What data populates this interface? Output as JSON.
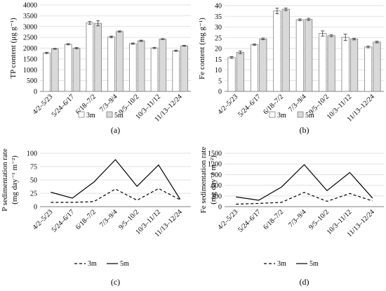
{
  "panel_labels": [
    "(a)",
    "(b)",
    "(c)",
    "(d)"
  ],
  "chart_data": [
    {
      "type": "bar",
      "panel": "(a)",
      "ylabel": "TP content (μg g⁻¹)",
      "ylim": [
        0,
        4000
      ],
      "yticks": [
        "0",
        "500",
        "1000",
        "1500",
        "2000",
        "2500",
        "3000",
        "3500",
        "4000"
      ],
      "categories": [
        "4/2–5/23",
        "5/24–6/17",
        "6/18–7/2",
        "7/3–9/4",
        "9/5–10/2",
        "10/3–11/12",
        "11/13–12/24"
      ],
      "series": [
        {
          "name": "3m",
          "values": [
            1780,
            2180,
            3170,
            2520,
            2210,
            2010,
            1880
          ],
          "errors": [
            30,
            30,
            70,
            40,
            30,
            30,
            30
          ],
          "color": "#ffffff"
        },
        {
          "name": "5m",
          "values": [
            1970,
            2000,
            3150,
            2770,
            2340,
            2420,
            2110
          ],
          "errors": [
            20,
            30,
            120,
            30,
            30,
            20,
            20
          ],
          "color": "#d9d9d9"
        }
      ],
      "legend": "bottom",
      "grid": true
    },
    {
      "type": "bar",
      "panel": "(b)",
      "ylabel": "Fe content (mg g⁻¹)",
      "ylim": [
        0,
        40
      ],
      "yticks": [
        "0",
        "5",
        "10",
        "15",
        "20",
        "25",
        "30",
        "35",
        "40"
      ],
      "categories": [
        "4/2–5/23",
        "5/24–6/17",
        "6/18–7/2",
        "7/3–9/4",
        "9/5–10/2",
        "10/3–11/12",
        "11/13–12/24"
      ],
      "series": [
        {
          "name": "3m",
          "values": [
            15.8,
            21.8,
            37.5,
            33.4,
            27.0,
            25.2,
            20.7
          ],
          "errors": [
            0.4,
            0.3,
            1.3,
            0.4,
            1.2,
            1.5,
            0.4
          ],
          "color": "#ffffff"
        },
        {
          "name": "5m",
          "values": [
            18.2,
            24.5,
            38.3,
            33.6,
            26.0,
            24.4,
            23.0
          ],
          "errors": [
            0.6,
            0.4,
            0.6,
            0.5,
            0.5,
            0.4,
            0.4
          ],
          "color": "#d9d9d9"
        }
      ],
      "legend": "bottom",
      "grid": true
    },
    {
      "type": "line",
      "panel": "(c)",
      "ylabel_lines": [
        "P sedimentation rate",
        "(mg day⁻¹ m⁻²)"
      ],
      "ylim": [
        0,
        100
      ],
      "yticks": [
        "0",
        "25",
        "50",
        "75",
        "100"
      ],
      "categories": [
        "4/2–5/23",
        "5/24–6/17",
        "6/18–7/2",
        "7/3–9/4",
        "9/5–10/2",
        "10/3–11/12",
        "11/13–12/24"
      ],
      "series": [
        {
          "name": "3m",
          "values": [
            8,
            8,
            9.5,
            33,
            12,
            34,
            13
          ],
          "style": "dashed"
        },
        {
          "name": "5m",
          "values": [
            27,
            16,
            46,
            88,
            38,
            78,
            14
          ],
          "style": "solid"
        }
      ],
      "legend": "bottom",
      "grid": true
    },
    {
      "type": "line",
      "panel": "(d)",
      "ylabel_lines": [
        "Fe sedimentation rate",
        "(mg day⁻¹ m⁻²)"
      ],
      "ylim": [
        0,
        1500
      ],
      "yticks": [
        "0",
        "300",
        "600",
        "900",
        "1200",
        "1500"
      ],
      "categories": [
        "4/2–5/23",
        "5/24–6/17",
        "6/18–7/2",
        "7/3–9/4",
        "9/5–10/2",
        "10/3–11/12",
        "11/13–12/24"
      ],
      "series": [
        {
          "name": "3m",
          "values": [
            70,
            90,
            120,
            400,
            150,
            370,
            160
          ],
          "style": "dashed"
        },
        {
          "name": "5m",
          "values": [
            275,
            180,
            550,
            1180,
            450,
            960,
            240
          ],
          "style": "solid"
        }
      ],
      "legend": "bottom",
      "grid": true
    }
  ]
}
